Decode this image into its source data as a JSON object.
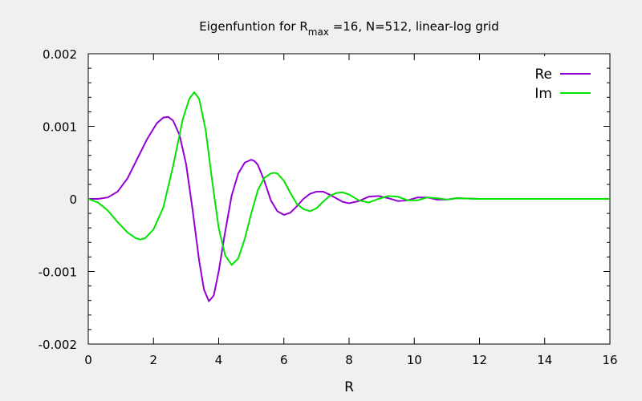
{
  "chart_data": {
    "type": "line",
    "title": {
      "prefix": "Eigenfuntion for R",
      "subscript": "max",
      "suffix": " =16, N=512, linear-log grid"
    },
    "xlabel": "R",
    "ylabel": "",
    "xlim": [
      0,
      16
    ],
    "ylim": [
      -0.002,
      0.002
    ],
    "xticks": [
      0,
      2,
      4,
      6,
      8,
      10,
      12,
      14,
      16
    ],
    "xtick_labels": [
      "0",
      "2",
      "4",
      "6",
      "8",
      "10",
      "12",
      "14",
      "16"
    ],
    "yticks": [
      -0.002,
      -0.001,
      0,
      0.001,
      0.002
    ],
    "ytick_labels": [
      "-0.002",
      "-0.001",
      "0",
      "0.001",
      "0.002"
    ],
    "grid": false,
    "legend_position": "top-right",
    "series": [
      {
        "name": "Re",
        "color": "#9400d3",
        "x": [
          0,
          0.3,
          0.6,
          0.9,
          1.2,
          1.5,
          1.8,
          2.1,
          2.3,
          2.45,
          2.6,
          2.8,
          3.0,
          3.2,
          3.4,
          3.55,
          3.7,
          3.85,
          4.0,
          4.2,
          4.4,
          4.6,
          4.8,
          5.0,
          5.1,
          5.2,
          5.4,
          5.6,
          5.8,
          6.0,
          6.2,
          6.4,
          6.6,
          6.8,
          7.0,
          7.2,
          7.4,
          7.6,
          7.8,
          8.0,
          8.3,
          8.6,
          8.9,
          9.2,
          9.5,
          9.8,
          10.1,
          10.4,
          10.7,
          11.0,
          11.3,
          11.6,
          12,
          13,
          14,
          15,
          16
        ],
        "y": [
          0,
          0,
          2e-05,
          0.0001,
          0.00028,
          0.00055,
          0.00082,
          0.00104,
          0.00112,
          0.00113,
          0.00108,
          0.00088,
          0.00048,
          -0.00015,
          -0.00085,
          -0.00125,
          -0.00141,
          -0.00133,
          -0.001,
          -0.00045,
          5e-05,
          0.00035,
          0.0005,
          0.00054,
          0.00052,
          0.00047,
          0.00025,
          -2e-05,
          -0.00017,
          -0.00022,
          -0.00019,
          -0.0001,
          0,
          7e-05,
          0.0001,
          0.0001,
          6e-05,
          1e-05,
          -4e-05,
          -6e-05,
          -3e-05,
          3e-05,
          4e-05,
          1e-05,
          -3e-05,
          -2e-05,
          2e-05,
          2e-05,
          -1e-05,
          -1e-05,
          1e-05,
          5e-06,
          0,
          0,
          0,
          0,
          0
        ]
      },
      {
        "name": "Im",
        "color": "#00e400",
        "x": [
          0,
          0.3,
          0.6,
          0.9,
          1.2,
          1.45,
          1.6,
          1.75,
          2.0,
          2.3,
          2.6,
          2.9,
          3.1,
          3.25,
          3.4,
          3.6,
          3.8,
          4.0,
          4.2,
          4.4,
          4.6,
          4.8,
          5.0,
          5.2,
          5.4,
          5.6,
          5.7,
          5.8,
          6.0,
          6.2,
          6.4,
          6.6,
          6.8,
          7.0,
          7.2,
          7.4,
          7.6,
          7.8,
          8.0,
          8.3,
          8.6,
          8.9,
          9.2,
          9.5,
          9.8,
          10.1,
          10.4,
          10.7,
          11.0,
          11.3,
          11.6,
          12,
          13,
          14,
          15,
          16
        ],
        "y": [
          0,
          -5e-05,
          -0.00016,
          -0.00032,
          -0.00046,
          -0.00054,
          -0.00056,
          -0.00054,
          -0.00042,
          -0.00012,
          0.00045,
          0.0011,
          0.00138,
          0.00147,
          0.00138,
          0.00095,
          0.00025,
          -0.0004,
          -0.00078,
          -0.00091,
          -0.00082,
          -0.00055,
          -0.0002,
          0.00012,
          0.00029,
          0.00035,
          0.00036,
          0.00035,
          0.00025,
          8e-05,
          -7e-05,
          -0.00014,
          -0.00017,
          -0.00013,
          -4e-05,
          4e-05,
          8e-05,
          9e-05,
          6e-05,
          -2e-05,
          -5e-05,
          0,
          4e-05,
          3e-05,
          -2e-05,
          -2e-05,
          2e-05,
          1e-05,
          -1e-05,
          1e-05,
          5e-06,
          0,
          0,
          0,
          0,
          0
        ]
      }
    ]
  }
}
